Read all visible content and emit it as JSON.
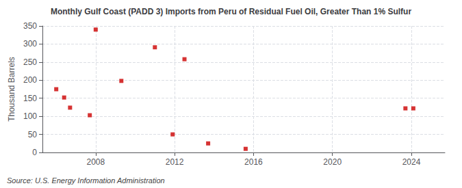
{
  "chart_data": {
    "type": "scatter",
    "title": "Monthly Gulf Coast (PADD 3) Imports from Peru of Residual Fuel Oil, Greater Than 1% Sulfur",
    "ylabel": "Thousand Barrels",
    "annotation": "Source: U.S. Energy Information Administration",
    "x": [
      2006.0,
      2006.4,
      2006.7,
      2007.7,
      2008.0,
      2009.3,
      2011.0,
      2011.9,
      2012.5,
      2013.7,
      2015.6,
      2023.7,
      2024.1
    ],
    "values": [
      175,
      152,
      124,
      103,
      340,
      198,
      291,
      50,
      258,
      25,
      10,
      122,
      122
    ],
    "color": "#cc0000",
    "marker": "square",
    "xlim": [
      2005.3,
      2025.7
    ],
    "xticks": [
      2008,
      2012,
      2016,
      2020,
      2024
    ],
    "ylim": [
      0,
      350
    ],
    "yticks": [
      0,
      50,
      100,
      150,
      200,
      250,
      300,
      350
    ],
    "grid": true
  }
}
